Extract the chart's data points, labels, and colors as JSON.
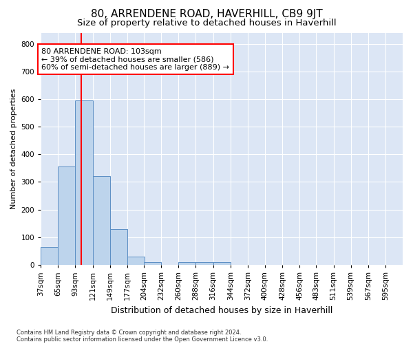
{
  "title": "80, ARRENDENE ROAD, HAVERHILL, CB9 9JT",
  "subtitle": "Size of property relative to detached houses in Haverhill",
  "xlabel": "Distribution of detached houses by size in Haverhill",
  "ylabel": "Number of detached properties",
  "footnote1": "Contains HM Land Registry data © Crown copyright and database right 2024.",
  "footnote2": "Contains public sector information licensed under the Open Government Licence v3.0.",
  "annotation_line1": "80 ARRENDENE ROAD: 103sqm",
  "annotation_line2": "← 39% of detached houses are smaller (586)",
  "annotation_line3": "60% of semi-detached houses are larger (889) →",
  "property_size": 103,
  "bar_color": "#bdd4ec",
  "bar_edge_color": "#5b8ec4",
  "vline_color": "red",
  "background_color": "#dce6f5",
  "categories": [
    "37sqm",
    "65sqm",
    "93sqm",
    "121sqm",
    "149sqm",
    "177sqm",
    "204sqm",
    "232sqm",
    "260sqm",
    "288sqm",
    "316sqm",
    "344sqm",
    "372sqm",
    "400sqm",
    "428sqm",
    "456sqm",
    "483sqm",
    "511sqm",
    "539sqm",
    "567sqm",
    "595sqm"
  ],
  "bin_starts": [
    37,
    65,
    93,
    121,
    149,
    177,
    204,
    232,
    260,
    288,
    316,
    344,
    372,
    400,
    428,
    456,
    483,
    511,
    539,
    567,
    595
  ],
  "bin_width": 28,
  "values": [
    65,
    355,
    595,
    320,
    130,
    30,
    10,
    0,
    10,
    10,
    10,
    0,
    0,
    0,
    0,
    0,
    0,
    0,
    0,
    0,
    0
  ],
  "ylim": [
    0,
    840
  ],
  "yticks": [
    0,
    100,
    200,
    300,
    400,
    500,
    600,
    700,
    800
  ],
  "grid_color": "#ffffff",
  "annotation_box_color": "white",
  "annotation_box_edge": "red",
  "title_fontsize": 11,
  "subtitle_fontsize": 9.5,
  "ylabel_fontsize": 8,
  "xlabel_fontsize": 9,
  "tick_fontsize": 7.5,
  "annotation_fontsize": 8,
  "footnote_fontsize": 6
}
